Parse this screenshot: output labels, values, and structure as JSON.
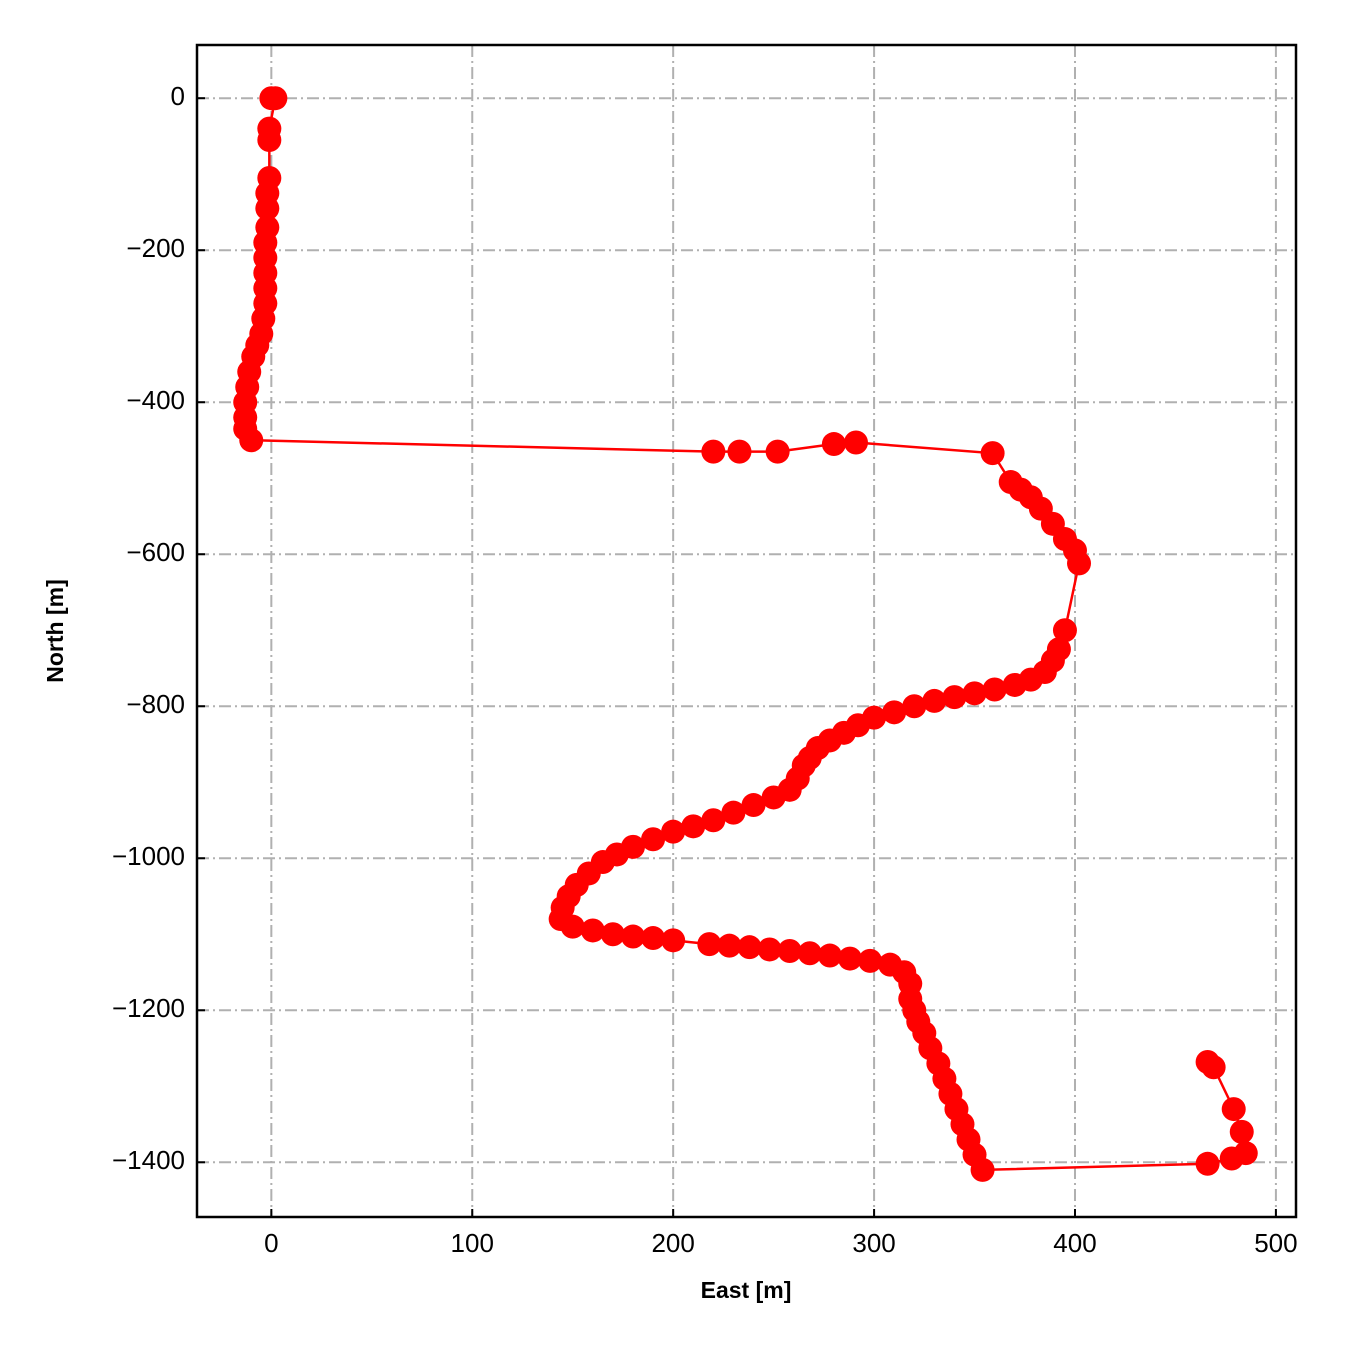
{
  "chart_data": {
    "type": "line",
    "xlabel": "East [m]",
    "ylabel": "North [m]",
    "color": "#ff0000",
    "markers": true,
    "grid": true,
    "x": [
      0,
      2,
      -1,
      -1,
      -1,
      -2,
      -2,
      -2,
      -3,
      -3,
      -3,
      -3,
      -3,
      -4,
      -5,
      -7,
      -9,
      -11,
      -12,
      -13,
      -13,
      -13,
      -10,
      220,
      233,
      252,
      280,
      291,
      359,
      368,
      373,
      378,
      383,
      389,
      395,
      400,
      402,
      395,
      392,
      389,
      385,
      378,
      370,
      360,
      350,
      340,
      330,
      320,
      310,
      300,
      292,
      285,
      278,
      272,
      268,
      265,
      262,
      258,
      250,
      240,
      230,
      220,
      210,
      200,
      190,
      180,
      172,
      165,
      158,
      152,
      148,
      145,
      144,
      150,
      160,
      170,
      180,
      190,
      200,
      218,
      228,
      238,
      248,
      258,
      268,
      278,
      288,
      298,
      308,
      315,
      318,
      318,
      320,
      322,
      325,
      328,
      332,
      335,
      338,
      341,
      344,
      347,
      350,
      354,
      466,
      478,
      485,
      483,
      479,
      469,
      466
    ],
    "y": [
      0,
      0,
      -40,
      -55,
      -105,
      -125,
      -145,
      -170,
      -190,
      -210,
      -230,
      -250,
      -270,
      -290,
      -310,
      -325,
      -340,
      -360,
      -380,
      -400,
      -420,
      -435,
      -450,
      -465,
      -465,
      -465,
      -455,
      -453,
      -467,
      -505,
      -515,
      -525,
      -540,
      -560,
      -580,
      -595,
      -612,
      -700,
      -725,
      -740,
      -755,
      -765,
      -772,
      -778,
      -783,
      -788,
      -793,
      -800,
      -808,
      -815,
      -825,
      -835,
      -845,
      -855,
      -868,
      -878,
      -895,
      -910,
      -920,
      -930,
      -940,
      -950,
      -958,
      -965,
      -975,
      -985,
      -995,
      -1005,
      -1020,
      -1035,
      -1050,
      -1065,
      -1080,
      -1090,
      -1095,
      -1100,
      -1103,
      -1105,
      -1108,
      -1113,
      -1115,
      -1117,
      -1120,
      -1122,
      -1125,
      -1128,
      -1132,
      -1135,
      -1140,
      -1150,
      -1165,
      -1185,
      -1200,
      -1215,
      -1230,
      -1250,
      -1270,
      -1290,
      -1310,
      -1330,
      -1350,
      -1370,
      -1390,
      -1410,
      -1402,
      -1395,
      -1388,
      -1360,
      -1330,
      -1275,
      -1268
    ],
    "xlim": [
      -37,
      510
    ],
    "ylim": [
      -1472,
      70
    ],
    "xticks": [
      0,
      100,
      200,
      300,
      400,
      500
    ],
    "yticks": [
      {
        "value": -1400,
        "label": "−1400"
      },
      {
        "value": -1200,
        "label": "−1200"
      },
      {
        "value": -1000,
        "label": "−1000"
      },
      {
        "value": -800,
        "label": "−800"
      },
      {
        "value": -600,
        "label": "−600"
      },
      {
        "value": -400,
        "label": "−400"
      },
      {
        "value": -200,
        "label": "−200"
      },
      0
    ]
  }
}
